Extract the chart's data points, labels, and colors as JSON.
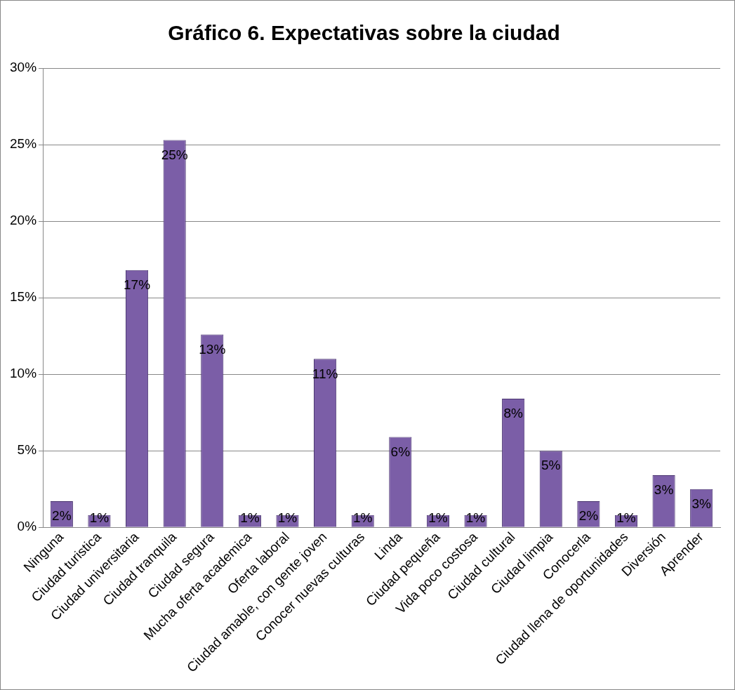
{
  "chart_data": {
    "type": "bar",
    "title": "Gráfico 6. Expectativas sobre la ciudad",
    "categories": [
      "Ninguna",
      "Ciudad turistica",
      "Ciudad universitaria",
      "Ciudad tranquila",
      "Ciudad segura",
      "Mucha oferta academica",
      "Oferta laboral",
      "Ciudad amable, con gente joven",
      "Conocer nuevas culturas",
      "Linda",
      "Ciudad pequeña",
      "Vida poco costosa",
      "Ciudad cultural",
      "Ciudad limpia",
      "Conocerla",
      "Ciudad llena de oportunidades",
      "Diversión",
      "Aprender"
    ],
    "values": [
      1.7,
      0.8,
      16.8,
      25.3,
      12.6,
      0.8,
      0.8,
      11.0,
      0.8,
      5.9,
      0.8,
      0.8,
      8.4,
      5.0,
      1.7,
      0.8,
      3.4,
      2.5
    ],
    "value_labels": [
      "2%",
      "1%",
      "17%",
      "25%",
      "13%",
      "1%",
      "1%",
      "11%",
      "1%",
      "6%",
      "1%",
      "1%",
      "8%",
      "5%",
      "2%",
      "1%",
      "3%",
      "3%"
    ],
    "color": "#7b5ea7",
    "ylim": [
      0,
      30
    ],
    "yticks": [
      {
        "value": 0,
        "label": "0%"
      },
      {
        "value": 5,
        "label": "5%"
      },
      {
        "value": 10,
        "label": "10%"
      },
      {
        "value": 15,
        "label": "15%"
      },
      {
        "value": 20,
        "label": "20%"
      },
      {
        "value": 25,
        "label": "25%"
      },
      {
        "value": 30,
        "label": "30%"
      }
    ],
    "grid": "y",
    "legend": false
  }
}
